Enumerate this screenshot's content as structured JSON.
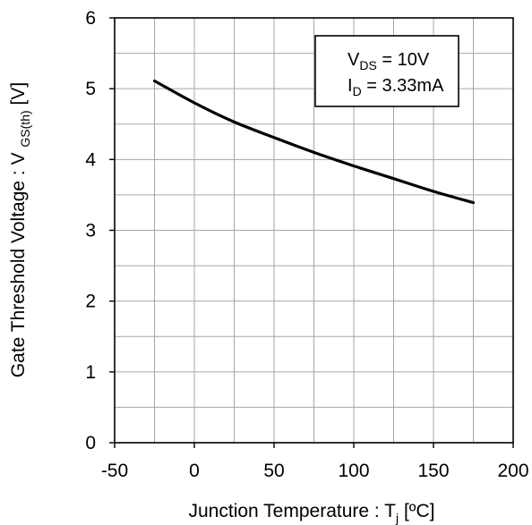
{
  "chart_data": {
    "type": "line",
    "title": "",
    "xlabel": {
      "main": "Junction Temperature : T",
      "sub": "j",
      "tail": " [ºC]"
    },
    "ylabel": {
      "main": "Gate Threshold Voltage : V ",
      "sub": "GS(th)",
      "tail": " [V]"
    },
    "xlim": [
      -50,
      200
    ],
    "ylim": [
      0,
      6
    ],
    "x_ticks": [
      -50,
      0,
      50,
      100,
      150,
      200
    ],
    "x_tick_labels": [
      "-50",
      "0",
      "50",
      "100",
      "150",
      "200"
    ],
    "y_ticks": [
      0,
      1,
      2,
      3,
      4,
      5,
      6
    ],
    "y_tick_labels": [
      "0",
      "1",
      "2",
      "3",
      "4",
      "5",
      "6"
    ],
    "x_minor_step": 25,
    "y_minor_step": 0.5,
    "grid": true,
    "grid_color": "#a6a6a6",
    "legend_position": "top-right",
    "annotations": [
      {
        "main": "V",
        "sub": "DS",
        "tail": " = 10V"
      },
      {
        "main": "I",
        "sub": "D",
        "tail": " = 3.33mA"
      }
    ],
    "series": [
      {
        "color": "#000000",
        "x": [
          -25,
          0,
          25,
          50,
          75,
          100,
          125,
          150,
          175
        ],
        "y": [
          5.11,
          4.8,
          4.53,
          4.31,
          4.1,
          3.91,
          3.73,
          3.55,
          3.39
        ]
      }
    ]
  }
}
